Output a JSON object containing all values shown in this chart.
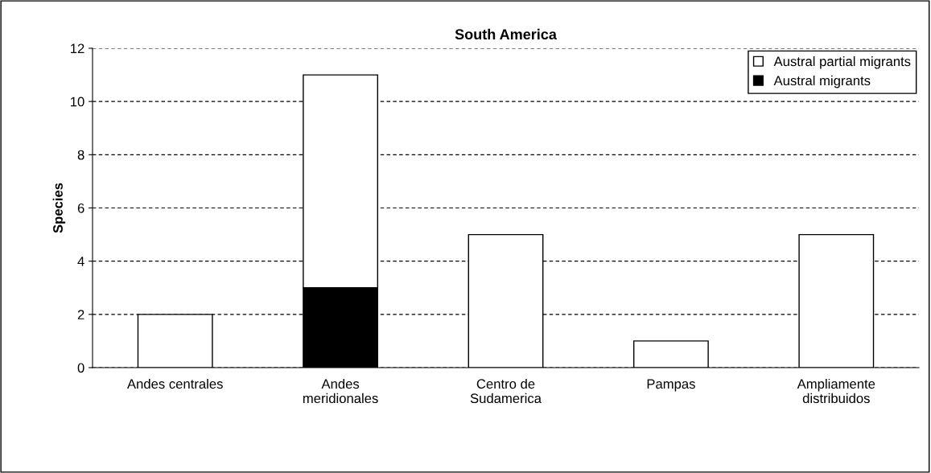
{
  "chart_data": {
    "type": "bar",
    "title": "South America",
    "ylabel": "Species",
    "categories": [
      "Andes centrales",
      "Andes\nmeridionales",
      "Centro de\nSudamerica",
      "Pampas",
      "Ampliamente\ndistribuidos"
    ],
    "stacked": true,
    "series": [
      {
        "name": "Austral migrants",
        "color": "#000000",
        "values": [
          0,
          3,
          0,
          0,
          0
        ]
      },
      {
        "name": "Austral partial migrants",
        "color": "#ffffff",
        "values": [
          2,
          8,
          5,
          1,
          5
        ]
      }
    ],
    "ylim": [
      0,
      12
    ],
    "yticks": [
      0,
      2,
      4,
      6,
      8,
      10,
      12
    ],
    "grid": "y",
    "legend": "top right"
  }
}
